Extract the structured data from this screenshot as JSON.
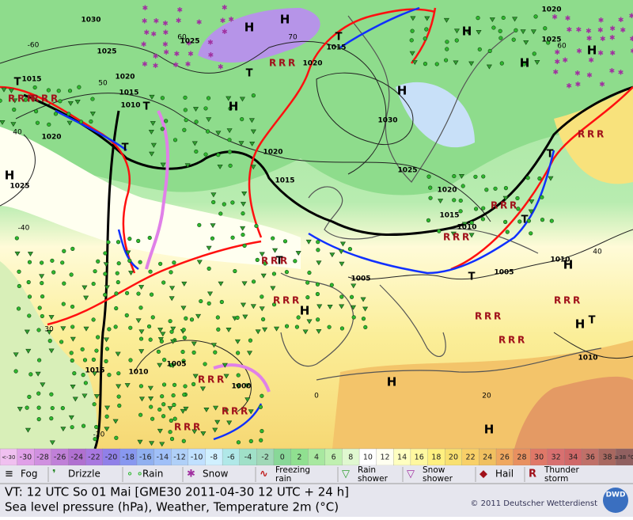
{
  "map": {
    "pressure_labels": [
      "1030",
      "1025",
      "1025",
      "1020",
      "1020",
      "1015",
      "1010",
      "1020",
      "1025",
      "1015",
      "1030",
      "1025",
      "1020",
      "1015",
      "1020",
      "1015",
      "1010",
      "1005",
      "1005",
      "1010",
      "1010",
      "1005",
      "1000",
      "1015",
      "1010",
      "1015",
      "1020",
      "1025"
    ],
    "isotherm_labels": [
      "-60",
      "60",
      "70",
      "50",
      "40",
      "-40",
      "30",
      "-20",
      "0",
      "20",
      "40",
      "60"
    ],
    "highs": [
      "H",
      "H",
      "H",
      "H",
      "H",
      "H",
      "H",
      "H",
      "H",
      "H",
      "H",
      "H",
      "H"
    ],
    "lows": [
      "T",
      "T",
      "T",
      "T",
      "T",
      "T",
      "T",
      "T",
      "T",
      "T"
    ]
  },
  "scale": {
    "first": "<-30",
    "values": [
      -30,
      -28,
      -26,
      -24,
      -22,
      -20,
      -18,
      -16,
      -14,
      -12,
      -10,
      -8,
      -6,
      -4,
      -2,
      0,
      2,
      4,
      6,
      8,
      10,
      12,
      14,
      16,
      18,
      20,
      22,
      24,
      26,
      28,
      30,
      32,
      34,
      36,
      38
    ],
    "last": "≥38 °C"
  },
  "legend": [
    [
      "Fog"
    ],
    [
      "Drizzle"
    ],
    [
      "Rain"
    ],
    [
      "Snow"
    ],
    [
      "Freezing",
      "rain"
    ],
    [
      "Rain",
      "shower"
    ],
    [
      "Snow",
      "shower"
    ],
    [
      "Hail"
    ],
    [
      "Thunder",
      "storm"
    ]
  ],
  "footer": {
    "valid_time": "VT: 12 UTC So  01 Mai [GME30 2011-04-30  12 UTC + 24 h]",
    "subtitle": "Sea level pressure (hPa), Weather, Temperature 2m (°C)",
    "copyright": "© 2011 Deutscher Wetterdienst",
    "logo": "DWD"
  }
}
